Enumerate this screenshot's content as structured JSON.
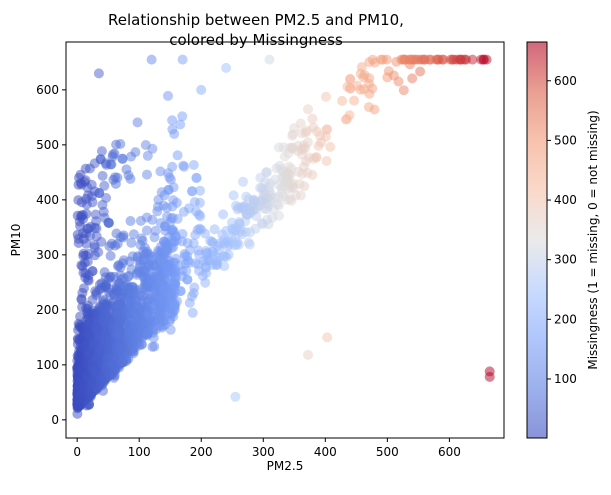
{
  "chart_data": {
    "type": "scatter",
    "title": "Relationship between PM2.5 and PM10,\ncolored by Missingness",
    "xlabel": "PM2.5",
    "ylabel": "PM10",
    "colorbar_label": "Missingness (1 = missing, 0 = not missing)",
    "xlim": [
      -18,
      688
    ],
    "ylim": [
      -33,
      687
    ],
    "x_ticks": [
      0,
      100,
      200,
      300,
      400,
      500,
      600
    ],
    "y_ticks": [
      0,
      100,
      200,
      300,
      400,
      500,
      600
    ],
    "colorbar_range": [
      1,
      665
    ],
    "colorbar_ticks": [
      100,
      200,
      300,
      400,
      500,
      600
    ],
    "colormap": "coolwarm",
    "marker_alpha": 0.5,
    "grid": false,
    "notable_points": [
      {
        "x": 665,
        "y": 88
      },
      {
        "x": 665,
        "y": 78
      },
      {
        "x": 372,
        "y": 118
      },
      {
        "x": 403,
        "y": 150
      },
      {
        "x": 255,
        "y": 42
      },
      {
        "x": 120,
        "y": 655
      },
      {
        "x": 170,
        "y": 655
      },
      {
        "x": 310,
        "y": 655
      },
      {
        "x": 560,
        "y": 655
      },
      {
        "x": 620,
        "y": 655
      },
      {
        "x": 660,
        "y": 655
      },
      {
        "x": 240,
        "y": 640
      },
      {
        "x": 440,
        "y": 620
      },
      {
        "x": 200,
        "y": 600
      },
      {
        "x": 35,
        "y": 630
      }
    ]
  }
}
